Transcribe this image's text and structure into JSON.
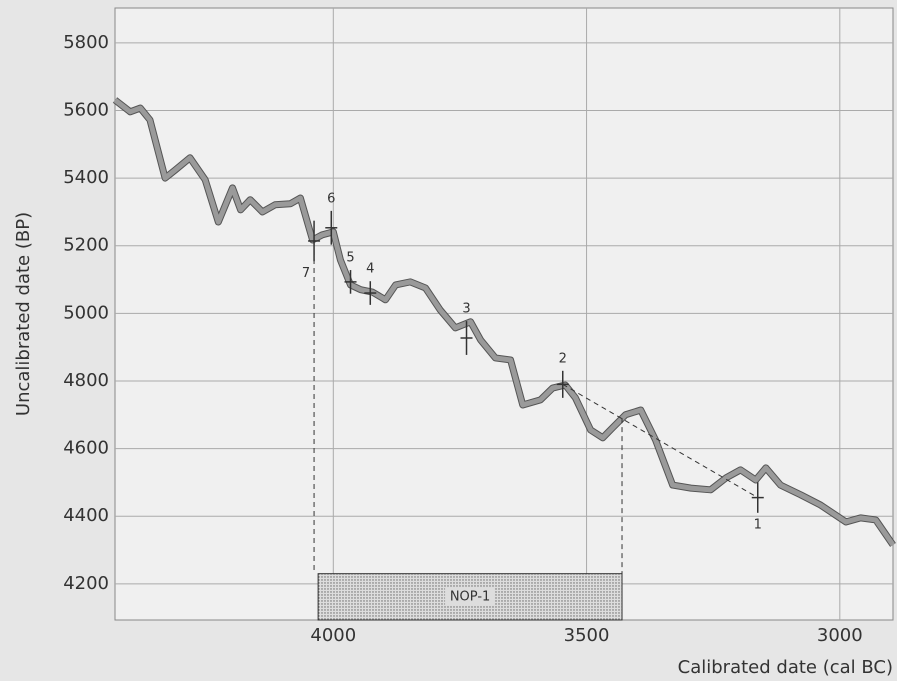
{
  "chart_data": {
    "type": "calibration",
    "x_label": "Calibrated date (cal BC)",
    "y_label": "Uncalibrated date (BP)",
    "xlim": [
      4431,
      2895
    ],
    "ylim": [
      4093,
      5903
    ],
    "xticks": [
      4000,
      3500,
      3000
    ],
    "yticks": [
      4200,
      4400,
      4600,
      4800,
      5000,
      5200,
      5400,
      5600,
      5800
    ],
    "grid": true,
    "curve": {
      "color": "#9a9a9a",
      "x": [
        4431,
        4401,
        4381,
        4362,
        4332,
        4312,
        4283,
        4253,
        4227,
        4199,
        4183,
        4164,
        4140,
        4115,
        4085,
        4065,
        4041,
        4022,
        4000,
        3986,
        3966,
        3946,
        3923,
        3897,
        3877,
        3848,
        3818,
        3789,
        3759,
        3729,
        3709,
        3680,
        3650,
        3626,
        3591,
        3567,
        3542,
        3522,
        3492,
        3468,
        3449,
        3423,
        3393,
        3364,
        3330,
        3294,
        3255,
        3225,
        3196,
        3166,
        3146,
        3117,
        3077,
        3038,
        2988,
        2959,
        2929,
        2895
      ],
      "values": [
        5631,
        5596,
        5607,
        5572,
        5400,
        5424,
        5460,
        5395,
        5270,
        5371,
        5306,
        5336,
        5300,
        5321,
        5324,
        5341,
        5217,
        5232,
        5241,
        5158,
        5084,
        5070,
        5063,
        5040,
        5084,
        5093,
        5075,
        5010,
        4957,
        4975,
        4921,
        4868,
        4862,
        4729,
        4744,
        4779,
        4788,
        4750,
        4655,
        4632,
        4661,
        4700,
        4714,
        4626,
        4492,
        4483,
        4478,
        4513,
        4537,
        4507,
        4543,
        4492,
        4463,
        4433,
        4383,
        4395,
        4389,
        4315
      ]
    },
    "samples": {
      "labels": [
        "1",
        "2",
        "3",
        "4",
        "5",
        "6",
        "7"
      ],
      "x": [
        3162,
        3547,
        3737,
        3927,
        3966,
        4004,
        4038
      ],
      "values": [
        4455,
        4790,
        4927,
        5060,
        5093,
        5253,
        5214
      ],
      "errors": [
        45,
        40,
        50,
        35,
        35,
        50,
        60
      ]
    },
    "range": {
      "label": "NOP-1",
      "xlim": [
        4030,
        3430
      ],
      "top": 4230
    }
  }
}
